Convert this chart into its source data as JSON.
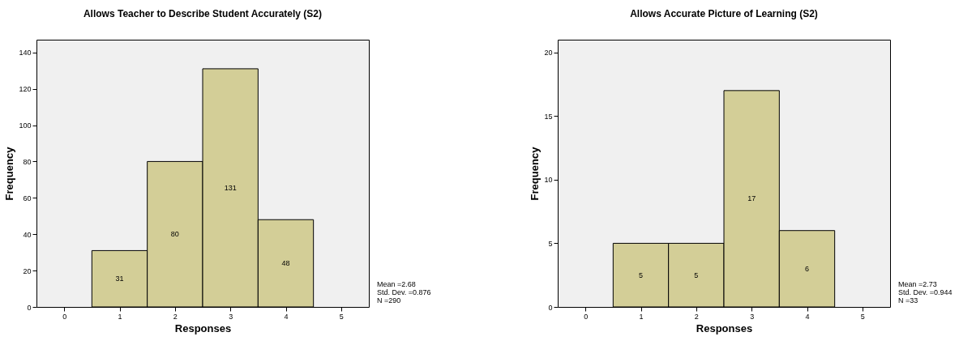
{
  "chart_data": [
    {
      "type": "histogram",
      "title": "Allows Teacher to Describe Student Accurately (S2)",
      "xlabel": "Responses",
      "ylabel": "Frequency",
      "bins": [
        0.5,
        1.5,
        2.5,
        3.5,
        4.5
      ],
      "values": [
        31,
        80,
        131,
        48
      ],
      "color": "#d3ce97",
      "xlim": [
        -0.5,
        5.5
      ],
      "xticks": [
        0,
        1,
        2,
        3,
        4,
        5
      ],
      "ylim": [
        0,
        147
      ],
      "yticks": [
        0,
        20,
        40,
        60,
        80,
        100,
        120,
        140
      ],
      "data_labels": true,
      "grid": false,
      "annotations": [
        "Mean =2.68",
        "Std. Dev. =0.876",
        "N =290"
      ]
    },
    {
      "type": "histogram",
      "title": "Allows Accurate Picture of Learning (S2)",
      "xlabel": "Responses",
      "ylabel": "Frequency",
      "bins": [
        0.5,
        1.5,
        2.5,
        3.5,
        4.5
      ],
      "values": [
        5,
        5,
        17,
        6
      ],
      "color": "#d3ce97",
      "xlim": [
        -0.5,
        5.5
      ],
      "xticks": [
        0,
        1,
        2,
        3,
        4,
        5
      ],
      "ylim": [
        0,
        21
      ],
      "yticks": [
        0,
        5,
        10,
        15,
        20
      ],
      "data_labels": true,
      "grid": false,
      "annotations": [
        "Mean =2.73",
        "Std. Dev. =0.944",
        "N =33"
      ]
    }
  ]
}
